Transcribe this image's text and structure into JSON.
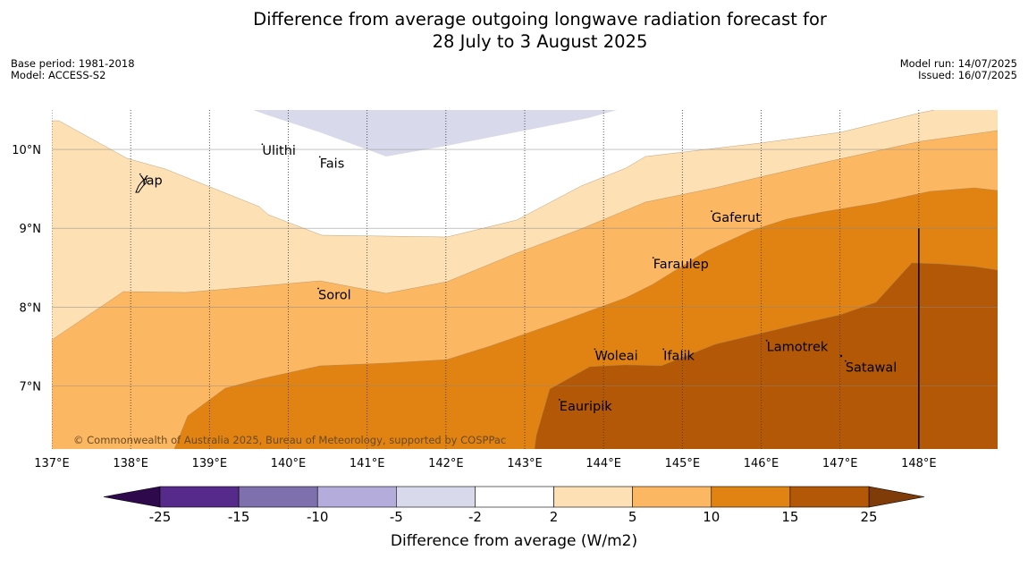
{
  "title_line1": "Difference from average outgoing longwave radiation forecast for",
  "title_line2": "28 July to 3 August 2025",
  "base_period": "Base period: 1981-2018",
  "model": "Model: ACCESS-S2",
  "model_run": "Model run: 14/07/2025",
  "issued": "Issued: 16/07/2025",
  "copyright": "© Commonwealth of Australia 2025, Bureau of Meteorology, supported by COSPPac",
  "map": {
    "lon_range": [
      137.0,
      149.0
    ],
    "lat_range": [
      6.2,
      10.5
    ],
    "lon_ticks": [
      137,
      138,
      139,
      140,
      141,
      142,
      143,
      144,
      145,
      146,
      147,
      148
    ],
    "lon_labels": [
      "137°E",
      "138°E",
      "139°E",
      "140°E",
      "141°E",
      "142°E",
      "143°E",
      "144°E",
      "145°E",
      "146°E",
      "147°E",
      "148°E"
    ],
    "lat_ticks": [
      7,
      8,
      9,
      10
    ],
    "lat_labels": [
      "7°N",
      "8°N",
      "9°N",
      "10°N"
    ],
    "date_line_lon": 148.0,
    "places": [
      {
        "name": "Ulithi",
        "lon": 139.67,
        "lat": 9.93
      },
      {
        "name": "Fais",
        "lon": 140.4,
        "lat": 9.77
      },
      {
        "name": "Yap",
        "lon": 138.12,
        "lat": 9.55
      },
      {
        "name": "Gaferut",
        "lon": 145.37,
        "lat": 9.08
      },
      {
        "name": "Faraulep",
        "lon": 144.63,
        "lat": 8.49
      },
      {
        "name": "Sorol",
        "lon": 140.38,
        "lat": 8.1
      },
      {
        "name": "Woleai",
        "lon": 143.89,
        "lat": 7.33
      },
      {
        "name": "Ifalik",
        "lon": 144.76,
        "lat": 7.33
      },
      {
        "name": "Lamotrek",
        "lon": 146.07,
        "lat": 7.44
      },
      {
        "name": "Satawal",
        "lon": 147.07,
        "lat": 7.18
      },
      {
        "name": "Eauripik",
        "lon": 143.44,
        "lat": 6.69
      }
    ]
  },
  "colorbar": {
    "ticks": [
      "-25",
      "-15",
      "-10",
      "-5",
      "-2",
      "2",
      "5",
      "10",
      "15",
      "25"
    ],
    "colors": [
      "#562a8a",
      "#7e70ad",
      "#b4addb",
      "#d8daec",
      "#ffffff",
      "#fde0b4",
      "#fcb763",
      "#e08313",
      "#b35807"
    ],
    "under_color": "#2e0a4d",
    "over_color": "#7f3b08",
    "label": "Difference from average (W/m2)"
  },
  "chart_data": {
    "type": "heatmap",
    "description_levels": [
      -25,
      -15,
      -10,
      -5,
      -2,
      2,
      5,
      10,
      15,
      25
    ],
    "xlabel": "",
    "ylabel": "",
    "xlim": [
      137.0,
      149.0
    ],
    "ylim": [
      6.2,
      10.5
    ],
    "legend_label": "Difference from average (W/m2)"
  }
}
